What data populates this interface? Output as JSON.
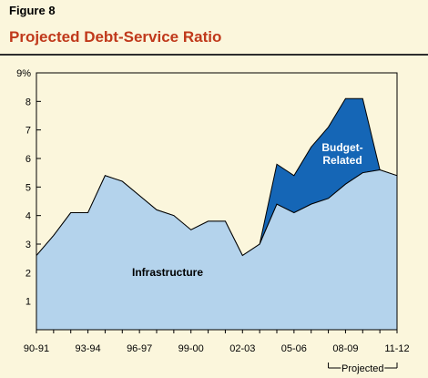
{
  "figure": {
    "label": "Figure 8",
    "title": "Projected Debt-Service Ratio"
  },
  "colors": {
    "title": "#c0391b",
    "infrastructure": "#b4d3ec",
    "budget_related": "#1566b6",
    "plot_background": "#fbf6dc",
    "outline": "#000000"
  },
  "chart_data": {
    "type": "area",
    "stacked": true,
    "x": [
      "90-91",
      "91-92",
      "92-93",
      "93-94",
      "94-95",
      "95-96",
      "96-97",
      "97-98",
      "98-99",
      "99-00",
      "00-01",
      "01-02",
      "02-03",
      "03-04",
      "04-05",
      "05-06",
      "06-07",
      "07-08",
      "08-09",
      "09-10",
      "10-11",
      "11-12"
    ],
    "x_tick_labels": [
      "90-91",
      "93-94",
      "96-97",
      "99-00",
      "02-03",
      "05-06",
      "08-09",
      "11-12"
    ],
    "y_tick_labels": [
      "9%",
      "8",
      "7",
      "6",
      "5",
      "4",
      "3",
      "2",
      "1"
    ],
    "ylim": [
      0,
      9
    ],
    "series": [
      {
        "name": "Infrastructure",
        "values": [
          2.6,
          3.3,
          4.1,
          4.1,
          5.4,
          5.2,
          4.7,
          4.2,
          4.0,
          3.5,
          3.8,
          3.8,
          2.6,
          3.0,
          4.4,
          4.1,
          4.4,
          4.6,
          5.1,
          5.5,
          5.6,
          5.4
        ]
      },
      {
        "name": "Budget-Related",
        "values": [
          0,
          0,
          0,
          0,
          0,
          0,
          0,
          0,
          0,
          0,
          0,
          0,
          0,
          0,
          1.4,
          1.3,
          2.0,
          2.5,
          3.0,
          2.6,
          0,
          0
        ]
      }
    ],
    "annotations": {
      "projected_label": "Projected",
      "projected_range": [
        "07-08",
        "11-12"
      ]
    },
    "grid": false,
    "legend": "none (labels inside areas)"
  }
}
